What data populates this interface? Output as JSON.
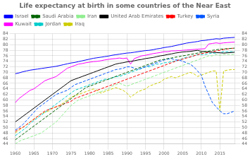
{
  "chart_data": {
    "type": "line",
    "title": "Life expectancy at birth in some countries of the Near East",
    "x": [
      1960,
      1961,
      1962,
      1963,
      1964,
      1965,
      1966,
      1967,
      1968,
      1969,
      1970,
      1971,
      1972,
      1973,
      1974,
      1975,
      1976,
      1977,
      1978,
      1979,
      1980,
      1981,
      1982,
      1983,
      1984,
      1985,
      1986,
      1987,
      1988,
      1989,
      1990,
      1991,
      1992,
      1993,
      1994,
      1995,
      1996,
      1997,
      1998,
      1999,
      2000,
      2001,
      2002,
      2003,
      2004,
      2005,
      2006,
      2007,
      2008,
      2009,
      2010,
      2011,
      2012,
      2013,
      2014,
      2015,
      2016,
      2017,
      2018,
      2019
    ],
    "series": [
      {
        "name": "Israel",
        "color": "#0000ff",
        "line_style": "solid",
        "values": [
          69.5,
          69.8,
          70.2,
          70.5,
          70.8,
          71.0,
          71.2,
          71.4,
          71.6,
          71.8,
          72.0,
          72.2,
          72.5,
          72.8,
          73.1,
          73.4,
          73.6,
          73.9,
          74.2,
          74.5,
          74.8,
          75.1,
          75.3,
          75.5,
          75.7,
          75.9,
          76.2,
          76.4,
          76.6,
          76.8,
          77.0,
          77.1,
          77.3,
          77.5,
          77.7,
          77.9,
          78.0,
          78.2,
          78.5,
          78.7,
          79.0,
          79.2,
          79.4,
          79.7,
          80.0,
          80.3,
          80.6,
          80.8,
          81.0,
          81.2,
          81.5,
          81.6,
          81.8,
          82.0,
          82.2,
          82.1,
          82.4,
          82.5,
          82.6,
          82.7
        ]
      },
      {
        "name": "Saudi Arabia",
        "color": "#006400",
        "line_style": "dashed",
        "values": [
          45.5,
          46.5,
          47.5,
          48.5,
          49.5,
          50.5,
          51.5,
          52.5,
          53.5,
          54.5,
          55.5,
          56.5,
          57.5,
          58.5,
          59.5,
          60.5,
          61.5,
          62.5,
          63.5,
          64.5,
          65.0,
          65.5,
          66.0,
          66.5,
          67.0,
          67.5,
          68.0,
          68.5,
          69.0,
          69.5,
          70.0,
          70.5,
          71.0,
          71.5,
          72.0,
          72.5,
          73.0,
          73.5,
          74.0,
          74.5,
          74.7,
          75.0,
          75.2,
          75.5,
          75.7,
          76.0,
          76.2,
          76.5,
          76.7,
          77.0,
          77.2,
          77.5,
          77.7,
          78.0,
          78.2,
          78.4,
          78.5,
          78.6,
          78.7,
          78.8
        ]
      },
      {
        "name": "Iran",
        "color": "#90ee90",
        "line_style": "dashed",
        "values": [
          44.0,
          45.0,
          45.5,
          46.0,
          46.5,
          47.0,
          47.5,
          48.0,
          49.0,
          50.0,
          51.0,
          52.0,
          53.5,
          55.0,
          56.5,
          58.0,
          59.0,
          60.0,
          60.5,
          61.0,
          61.5,
          62.0,
          62.5,
          63.0,
          63.5,
          64.0,
          65.0,
          65.5,
          66.0,
          65.5,
          65.0,
          65.5,
          66.0,
          66.5,
          67.0,
          67.5,
          68.0,
          68.5,
          69.0,
          69.5,
          70.0,
          70.5,
          71.0,
          71.5,
          72.0,
          72.5,
          73.0,
          73.5,
          74.0,
          74.5,
          75.0,
          75.5,
          76.0,
          76.0,
          76.5,
          76.2,
          76.5,
          76.5,
          76.5,
          76.5
        ]
      },
      {
        "name": "United Arab Emirates",
        "color": "#000000",
        "line_style": "solid",
        "values": [
          52.0,
          53.0,
          54.0,
          55.0,
          56.0,
          57.0,
          58.0,
          59.0,
          60.0,
          61.0,
          62.0,
          63.0,
          64.0,
          65.0,
          66.0,
          67.0,
          67.5,
          68.0,
          68.5,
          69.0,
          69.5,
          70.0,
          70.5,
          71.0,
          71.5,
          72.0,
          72.5,
          73.0,
          73.3,
          73.5,
          73.8,
          74.0,
          74.2,
          74.5,
          74.7,
          75.0,
          75.2,
          75.4,
          75.7,
          76.0,
          76.2,
          76.5,
          76.7,
          77.0,
          77.2,
          77.4,
          77.5,
          77.6,
          77.8,
          78.0,
          77.6,
          77.5,
          77.4,
          77.3,
          77.2,
          77.1,
          77.0,
          77.1,
          77.2,
          77.3
        ]
      },
      {
        "name": "Turkey",
        "color": "#ff0000",
        "line_style": "dashed",
        "values": [
          48.5,
          49.5,
          50.0,
          51.0,
          52.0,
          53.0,
          54.0,
          55.0,
          56.0,
          56.5,
          57.0,
          57.5,
          58.0,
          58.5,
          59.0,
          59.5,
          60.5,
          61.0,
          61.5,
          62.0,
          62.5,
          63.0,
          63.5,
          64.0,
          64.5,
          65.0,
          65.5,
          66.0,
          66.5,
          67.0,
          67.5,
          68.0,
          68.5,
          69.0,
          69.5,
          70.0,
          70.5,
          71.0,
          71.5,
          72.0,
          72.5,
          73.0,
          73.5,
          74.0,
          74.5,
          74.8,
          75.2,
          75.6,
          76.0,
          76.4,
          76.8,
          77.0,
          77.3,
          77.5,
          77.8,
          78.0,
          78.3,
          78.5,
          78.7,
          78.8
        ]
      },
      {
        "name": "Syria",
        "color": "#0055ff",
        "line_style": "dashed",
        "values": [
          49.0,
          50.0,
          51.0,
          52.5,
          54.0,
          55.5,
          57.0,
          58.0,
          59.0,
          60.0,
          61.0,
          62.0,
          62.5,
          63.0,
          63.5,
          64.5,
          65.5,
          66.0,
          66.5,
          67.0,
          67.5,
          68.0,
          68.5,
          69.0,
          69.5,
          70.0,
          70.5,
          71.0,
          71.2,
          71.5,
          72.0,
          72.0,
          71.5,
          71.0,
          71.5,
          72.0,
          72.5,
          73.0,
          73.5,
          74.0,
          74.5,
          74.8,
          75.0,
          74.5,
          74.5,
          74.0,
          73.5,
          73.0,
          72.0,
          70.5,
          69.0,
          65.0,
          62.0,
          59.0,
          57.5,
          56.0,
          55.0,
          55.0,
          55.5,
          56.0
        ]
      },
      {
        "name": "Kuwait",
        "color": "#ff00ff",
        "line_style": "solid",
        "values": [
          59.0,
          60.5,
          61.5,
          62.5,
          63.5,
          64.0,
          65.0,
          66.0,
          67.0,
          67.5,
          68.0,
          68.5,
          69.5,
          70.5,
          71.5,
          72.0,
          72.5,
          73.0,
          73.2,
          73.5,
          73.7,
          73.9,
          74.0,
          74.2,
          74.5,
          74.7,
          74.9,
          75.0,
          75.2,
          75.0,
          75.2,
          73.0,
          75.0,
          75.5,
          76.0,
          76.2,
          76.5,
          76.8,
          77.0,
          77.2,
          77.5,
          77.5,
          77.8,
          77.8,
          77.9,
          78.0,
          78.1,
          78.2,
          78.3,
          78.4,
          78.5,
          78.6,
          80.3,
          80.5,
          80.7,
          80.5,
          80.7,
          80.8,
          80.9,
          81.0
        ]
      },
      {
        "name": "Jordan",
        "color": "#00cccc",
        "line_style": "dashed",
        "values": [
          47.0,
          48.0,
          49.0,
          50.0,
          51.5,
          52.5,
          53.5,
          54.5,
          55.5,
          56.5,
          57.5,
          58.5,
          59.5,
          60.5,
          61.5,
          62.5,
          63.5,
          64.0,
          64.5,
          65.0,
          65.5,
          66.0,
          66.5,
          67.0,
          67.5,
          67.5,
          68.0,
          68.5,
          68.5,
          69.0,
          69.5,
          70.0,
          70.5,
          71.0,
          71.5,
          72.0,
          72.0,
          72.5,
          73.0,
          73.0,
          73.5,
          73.5,
          74.0,
          74.0,
          74.5,
          75.0,
          75.5,
          75.5,
          76.0,
          76.5,
          76.5,
          76.5,
          76.8,
          77.0,
          77.0,
          77.2,
          77.5,
          77.5,
          77.5,
          77.5
        ]
      },
      {
        "name": "Iraq",
        "color": "#cccc00",
        "line_style": "dashed",
        "values": [
          48.0,
          49.0,
          50.0,
          51.0,
          52.0,
          53.0,
          54.0,
          55.0,
          55.5,
          56.0,
          57.0,
          57.5,
          58.0,
          59.0,
          60.0,
          61.0,
          61.5,
          62.0,
          62.5,
          63.0,
          63.5,
          64.0,
          63.5,
          62.5,
          63.0,
          63.5,
          64.0,
          64.5,
          64.0,
          63.5,
          62.5,
          61.0,
          62.0,
          63.0,
          63.5,
          64.0,
          65.0,
          65.5,
          66.0,
          66.5,
          67.5,
          68.0,
          68.5,
          68.0,
          68.5,
          69.0,
          69.5,
          70.0,
          69.5,
          68.5,
          69.0,
          69.5,
          70.0,
          70.5,
          70.5,
          56.0,
          70.5,
          70.8,
          71.0,
          71.0
        ]
      }
    ],
    "xlim": [
      1960,
      2019
    ],
    "xticks": [
      1960,
      1965,
      1970,
      1975,
      1980,
      1985,
      1990,
      1995,
      2000,
      2005,
      2010,
      2015
    ],
    "ylim": [
      44,
      84
    ],
    "yticks": [
      44,
      46,
      48,
      50,
      52,
      54,
      56,
      58,
      60,
      62,
      64,
      66,
      68,
      70,
      72,
      74,
      76,
      78,
      80,
      82,
      84
    ],
    "y2lim": [
      44,
      84
    ],
    "y2ticks": [
      44,
      46,
      48,
      50,
      52,
      54,
      56,
      58,
      60,
      62,
      64,
      66,
      68,
      70,
      72,
      74,
      76,
      78,
      80,
      82,
      84
    ],
    "grid": true,
    "legend": "upper left"
  }
}
